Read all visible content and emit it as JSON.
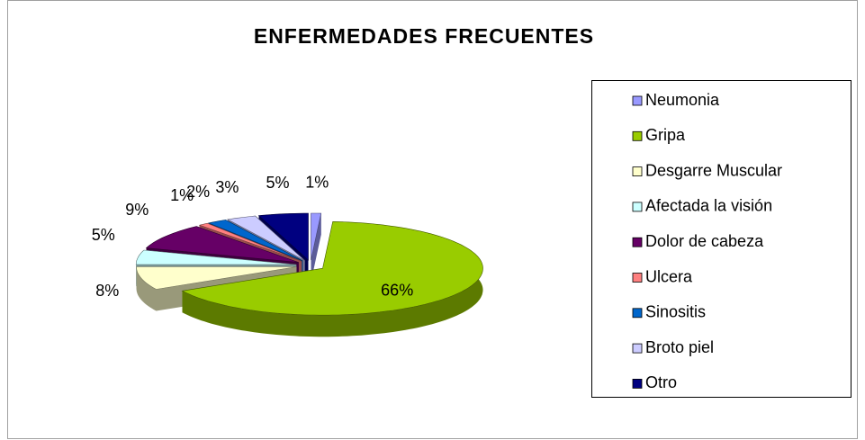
{
  "chart_data": {
    "type": "pie",
    "title": "ENFERMEDADES  FRECUENTES",
    "categories": [
      "Neumonia",
      "Gripa",
      "Desgarre Muscular",
      "Afectada la visión",
      "Dolor de cabeza",
      "Ulcera",
      "Sinositis",
      "Broto piel",
      "Otro"
    ],
    "values": [
      1,
      66,
      8,
      5,
      9,
      1,
      2,
      3,
      5
    ],
    "value_labels": [
      "1%",
      "66%",
      "8%",
      "5%",
      "9%",
      "1%",
      "2%",
      "3%",
      "5%"
    ],
    "colors": [
      "#9999ff",
      "#99cc00",
      "#ffffcc",
      "#ccffff",
      "#660066",
      "#ff8080",
      "#0066cc",
      "#ccccff",
      "#000080"
    ],
    "legend": "right"
  }
}
